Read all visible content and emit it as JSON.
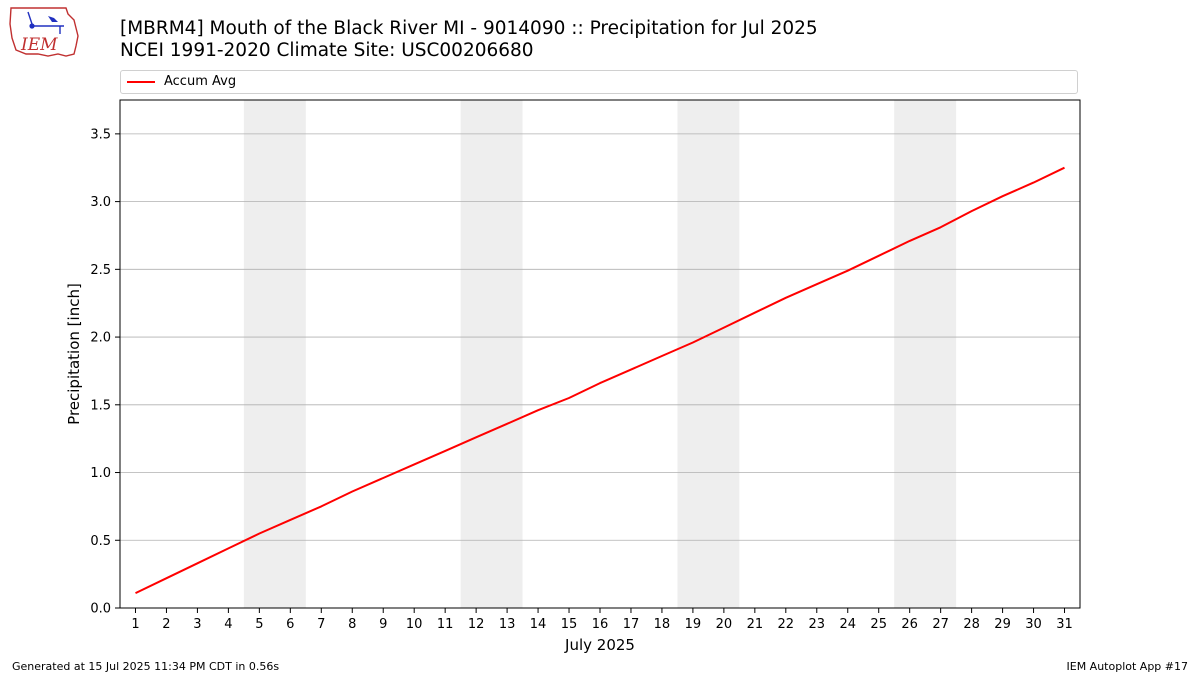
{
  "title": {
    "line1": "[MBRM4] Mouth of the Black River  MI - 9014090 :: Precipitation for Jul 2025",
    "line2": "NCEI 1991-2020 Climate Site: USC00206680"
  },
  "logo": {
    "text": "IEM",
    "icon": "iem-logo-icon"
  },
  "footer": {
    "left": "Generated at 15 Jul 2025 11:34 PM CDT in 0.56s",
    "right": "IEM Autoplot App #17"
  },
  "colors": {
    "series": "#ff0000",
    "weekend_band": "#eeeeee",
    "grid": "#b0b0b0"
  },
  "chart_data": {
    "type": "line",
    "xlabel": "July 2025",
    "ylabel": "Precipitation [inch]",
    "xlim": [
      0.5,
      31.5
    ],
    "ylim": [
      0,
      3.75
    ],
    "yticks": [
      "0.0",
      "0.5",
      "1.0",
      "1.5",
      "2.0",
      "2.5",
      "3.0",
      "3.5"
    ],
    "xticks": [
      "1",
      "2",
      "3",
      "4",
      "5",
      "6",
      "7",
      "8",
      "9",
      "10",
      "11",
      "12",
      "13",
      "14",
      "15",
      "16",
      "17",
      "18",
      "19",
      "20",
      "21",
      "22",
      "23",
      "24",
      "25",
      "26",
      "27",
      "28",
      "29",
      "30",
      "31"
    ],
    "grid": "horizontal",
    "legend": "top",
    "weekend_bands": [
      [
        5,
        6
      ],
      [
        12,
        13
      ],
      [
        19,
        20
      ],
      [
        26,
        27
      ]
    ],
    "series": [
      {
        "name": "Accum Avg",
        "x": [
          1,
          2,
          3,
          4,
          5,
          6,
          7,
          8,
          9,
          10,
          11,
          12,
          13,
          14,
          15,
          16,
          17,
          18,
          19,
          20,
          21,
          22,
          23,
          24,
          25,
          26,
          27,
          28,
          29,
          30,
          31
        ],
        "values": [
          0.11,
          0.22,
          0.33,
          0.44,
          0.55,
          0.65,
          0.75,
          0.86,
          0.96,
          1.06,
          1.16,
          1.26,
          1.36,
          1.46,
          1.55,
          1.66,
          1.76,
          1.86,
          1.96,
          2.07,
          2.18,
          2.29,
          2.39,
          2.49,
          2.6,
          2.71,
          2.81,
          2.93,
          3.04,
          3.14,
          3.25
        ]
      }
    ]
  }
}
